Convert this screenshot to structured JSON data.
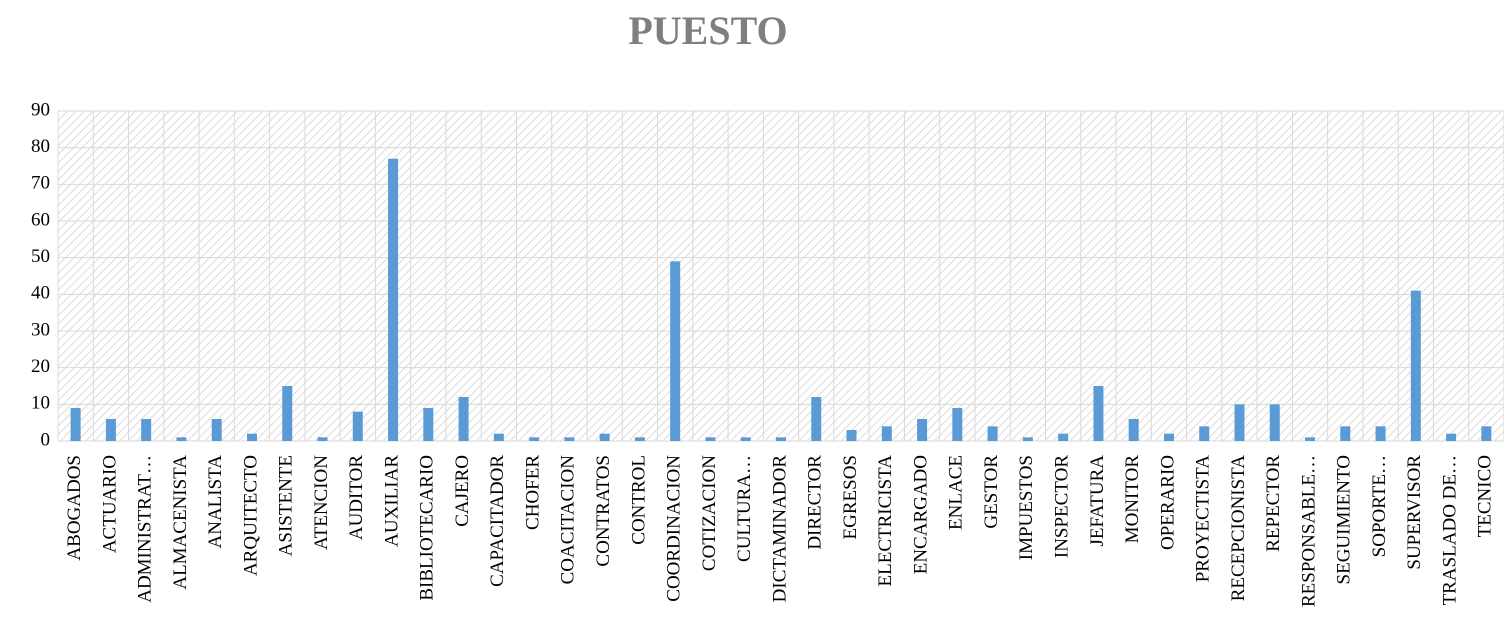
{
  "chart_data": {
    "type": "bar",
    "title": "PUESTO",
    "categories": [
      "ABOGADOS",
      "ACTUARIO",
      "ADMINISTRAT…",
      "ALMACENISTA",
      "ANALISTA",
      "ARQUITECTO",
      "ASISTENTE",
      "ATENCION",
      "AUDITOR",
      "AUXILIAR",
      "BIBLIOTECARIO",
      "CAJERO",
      "CAPACITADOR",
      "CHOFER",
      "COACITACION",
      "CONTRATOS",
      "CONTROL",
      "COORDINACION",
      "COTIZACION",
      "CULTURA…",
      "DICTAMINADOR",
      "DIRECTOR",
      "EGRESOS",
      "ELECTRICISTA",
      "ENCARGADO",
      "ENLACE",
      "GESTOR",
      "IMPUESTOS",
      "INSPECTOR",
      "JEFATURA",
      "MONITOR",
      "OPERARIO",
      "PROYECTISTA",
      "RECEPCIONISTA",
      "REPECTOR",
      "RESPONSABLE…",
      "SEGUIMIENTO",
      "SOPORTE…",
      "SUPERVISOR",
      "TRASLADO DE…",
      "TECNICO"
    ],
    "values": [
      9,
      6,
      6,
      1,
      6,
      2,
      15,
      1,
      8,
      77,
      9,
      12,
      2,
      1,
      1,
      2,
      1,
      49,
      1,
      1,
      1,
      12,
      3,
      4,
      6,
      9,
      4,
      1,
      2,
      15,
      6,
      2,
      4,
      10,
      10,
      1,
      4,
      4,
      41,
      2,
      4
    ],
    "color": "#5b9bd5",
    "ylim": [
      0,
      90
    ],
    "yticks": [
      0,
      10,
      20,
      30,
      40,
      50,
      60,
      70,
      80,
      90
    ],
    "grid": true
  }
}
